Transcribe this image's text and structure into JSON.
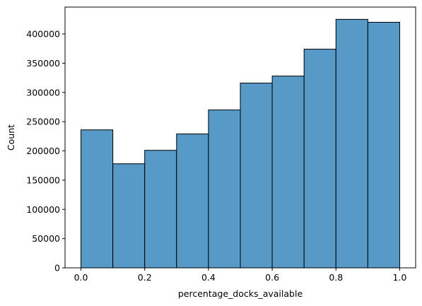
{
  "chart_data": {
    "type": "bar",
    "title": "",
    "xlabel": "percentage_docks_available",
    "ylabel": "Count",
    "bin_edges": [
      0.0,
      0.1,
      0.2,
      0.3,
      0.4,
      0.5,
      0.6,
      0.7,
      0.8,
      0.9,
      1.0
    ],
    "values": [
      236000,
      178000,
      201000,
      229000,
      270000,
      316000,
      328000,
      374000,
      425000,
      420000
    ],
    "xlim": [
      -0.05,
      1.05
    ],
    "ylim": [
      0,
      446000
    ],
    "x_ticks": [
      "0.0",
      "0.2",
      "0.4",
      "0.6",
      "0.8",
      "1.0"
    ],
    "y_ticks": [
      "0",
      "50000",
      "100000",
      "150000",
      "200000",
      "250000",
      "300000",
      "350000",
      "400000"
    ],
    "bar_color": "#5799c7",
    "edge_color": "#000000",
    "grid": false
  }
}
